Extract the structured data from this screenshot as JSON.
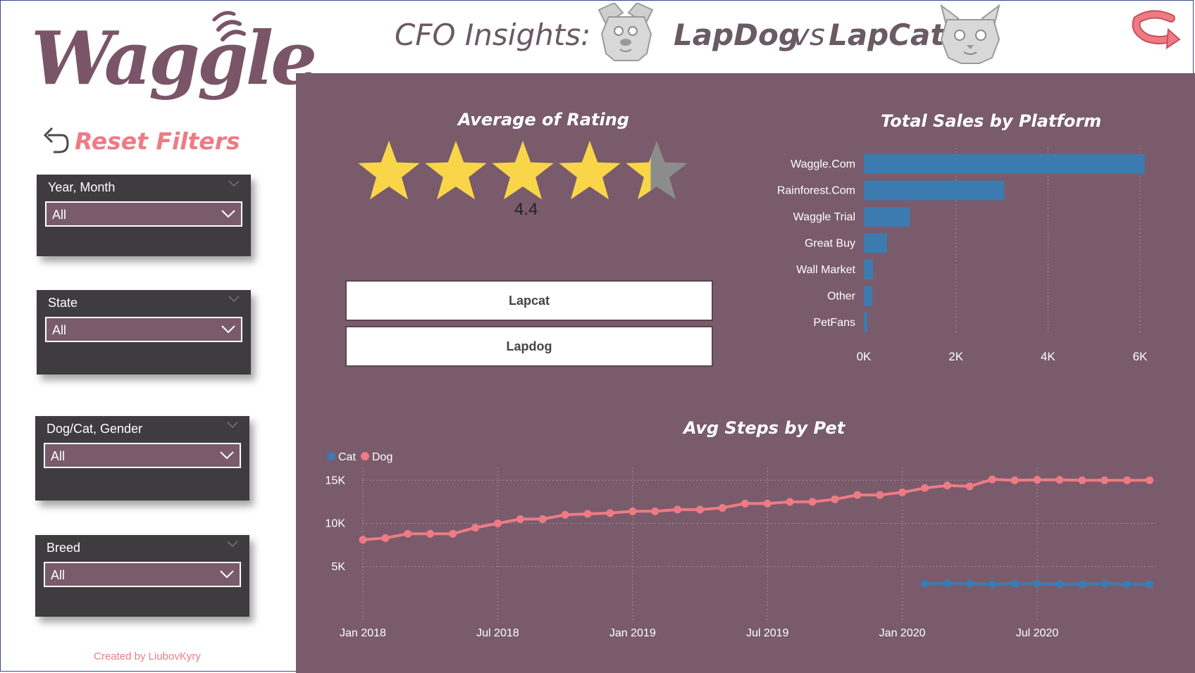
{
  "brand": {
    "logo_text": "Waggle",
    "accent": "#ee7b84",
    "panel": "#795b6c"
  },
  "header": {
    "prefix": "CFO Insights:",
    "product_a": "LapDog",
    "vs": "vs",
    "product_b": "LapCat"
  },
  "icons": {
    "dog": "dog-face-icon",
    "cat": "cat-face-icon",
    "back": "back-arrow-icon",
    "reset": "undo-icon"
  },
  "sidebar": {
    "reset_label": "Reset Filters",
    "slicers": [
      {
        "title": "Year, Month",
        "value": "All"
      },
      {
        "title": "State",
        "value": "All"
      },
      {
        "title": "Dog/Cat, Gender",
        "value": "All"
      },
      {
        "title": "Breed",
        "value": "All"
      }
    ],
    "credit": "Created by LiubovKyry"
  },
  "rating": {
    "title": "Average of Rating",
    "value": "4.4",
    "max": 5
  },
  "buttons": {
    "lapcat": "Lapcat",
    "lapdog": "Lapdog"
  },
  "chart_data": [
    {
      "type": "bar",
      "orientation": "horizontal",
      "title": "Total Sales by Platform",
      "categories": [
        "Waggle.Com",
        "Rainforest.Com",
        "Waggle Trial",
        "Great Buy",
        "Wall Market",
        "Other",
        "PetFans"
      ],
      "values": [
        6100,
        3050,
        1000,
        500,
        200,
        180,
        80
      ],
      "xlim": [
        0,
        6000
      ],
      "xticks": [
        "0K",
        "2K",
        "4K",
        "6K"
      ],
      "color": "#3c7bb0"
    },
    {
      "type": "line",
      "title": "Avg Steps by Pet",
      "legend": "top-left",
      "x_ticks": [
        "Jan 2018",
        "Jul 2018",
        "Jan 2019",
        "Jul 2019",
        "Jan 2020",
        "Jul 2020"
      ],
      "y_ticks": [
        "5K",
        "10K",
        "15K"
      ],
      "ylim": [
        0,
        16000
      ],
      "series": [
        {
          "name": "Dog",
          "color": "#ee7b84",
          "start_index": 0,
          "values": [
            8100,
            8300,
            8800,
            8800,
            8800,
            9500,
            10000,
            10500,
            10500,
            11000,
            11100,
            11200,
            11400,
            11400,
            11600,
            11600,
            11800,
            12300,
            12300,
            12500,
            12500,
            12800,
            13300,
            13300,
            13600,
            14100,
            14400,
            14300,
            15100,
            15000,
            15050,
            15050,
            15000,
            15000,
            15000,
            15000
          ]
        },
        {
          "name": "Cat",
          "color": "#3c7bb0",
          "start_index": 25,
          "values": [
            3000,
            3050,
            3000,
            2950,
            3000,
            3000,
            2950,
            2950,
            3000,
            2950,
            2950
          ]
        }
      ]
    }
  ]
}
